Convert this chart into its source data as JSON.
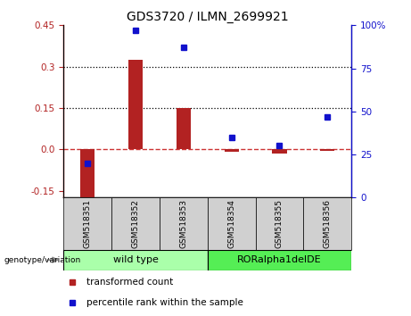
{
  "title": "GDS3720 / ILMN_2699921",
  "samples": [
    "GSM518351",
    "GSM518352",
    "GSM518353",
    "GSM518354",
    "GSM518355",
    "GSM518356"
  ],
  "transformed_count": [
    -0.175,
    0.325,
    0.15,
    -0.01,
    -0.015,
    -0.005
  ],
  "percentile_rank": [
    20,
    97,
    87,
    35,
    30,
    47
  ],
  "ylim_left": [
    -0.175,
    0.45
  ],
  "ylim_right": [
    0,
    100
  ],
  "yticks_left": [
    -0.15,
    0.0,
    0.15,
    0.3,
    0.45
  ],
  "yticks_right": [
    0,
    25,
    50,
    75,
    100
  ],
  "bar_color": "#b22222",
  "dot_color": "#1111cc",
  "zero_line_color": "#cc3333",
  "grid_line_color": "#000000",
  "wild_type_label": "wild type",
  "mutant_label": "RORalpha1delDE",
  "wild_type_color": "#aaffaa",
  "mutant_color": "#55ee55",
  "xticklabel_area_color": "#d0d0d0",
  "legend_bar_label": "transformed count",
  "legend_dot_label": "percentile rank within the sample",
  "genotype_label": "genotype/variation",
  "bar_width": 0.3,
  "title_fontsize": 10,
  "tick_fontsize": 7.5,
  "label_fontsize": 7.5,
  "sample_fontsize": 6.5
}
